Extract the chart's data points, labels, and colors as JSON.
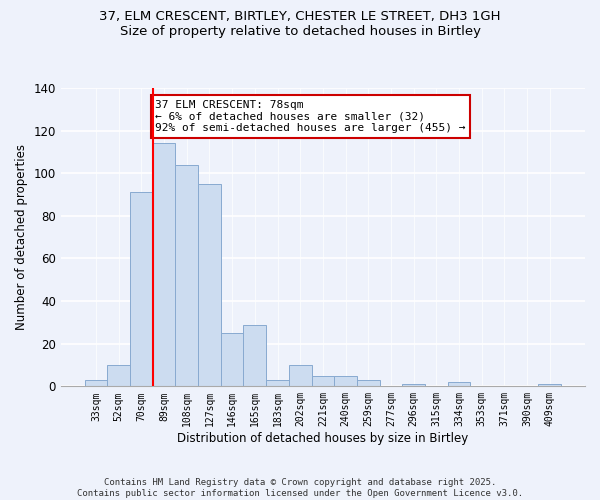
{
  "title": "37, ELM CRESCENT, BIRTLEY, CHESTER LE STREET, DH3 1GH",
  "subtitle": "Size of property relative to detached houses in Birtley",
  "xlabel": "Distribution of detached houses by size in Birtley",
  "ylabel": "Number of detached properties",
  "bar_labels": [
    "33sqm",
    "52sqm",
    "70sqm",
    "89sqm",
    "108sqm",
    "127sqm",
    "146sqm",
    "165sqm",
    "183sqm",
    "202sqm",
    "221sqm",
    "240sqm",
    "259sqm",
    "277sqm",
    "296sqm",
    "315sqm",
    "334sqm",
    "353sqm",
    "371sqm",
    "390sqm",
    "409sqm"
  ],
  "bar_values": [
    3,
    10,
    91,
    114,
    104,
    95,
    25,
    29,
    3,
    10,
    5,
    5,
    3,
    0,
    1,
    0,
    2,
    0,
    0,
    0,
    1
  ],
  "bar_color": "#ccdcf0",
  "bar_edge_color": "#88aad0",
  "vline_color": "red",
  "vline_x": 2.5,
  "ylim": [
    0,
    140
  ],
  "yticks": [
    0,
    20,
    40,
    60,
    80,
    100,
    120,
    140
  ],
  "annotation_title": "37 ELM CRESCENT: 78sqm",
  "annotation_line1": "← 6% of detached houses are smaller (32)",
  "annotation_line2": "92% of semi-detached houses are larger (455) →",
  "annotation_box_color": "#ffffff",
  "annotation_box_edge": "#cc0000",
  "footer_line1": "Contains HM Land Registry data © Crown copyright and database right 2025.",
  "footer_line2": "Contains public sector information licensed under the Open Government Licence v3.0.",
  "background_color": "#eef2fb",
  "grid_color": "#ffffff",
  "title_fontsize": 9.5,
  "subtitle_fontsize": 9,
  "ylabel_fontsize": 8.5,
  "xlabel_fontsize": 8.5,
  "ytick_fontsize": 8.5,
  "xtick_fontsize": 7,
  "annotation_fontsize": 8,
  "footer_fontsize": 6.5
}
